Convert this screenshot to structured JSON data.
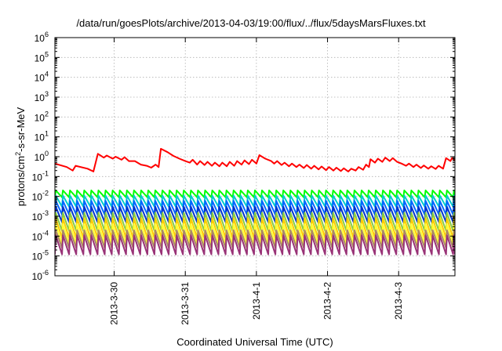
{
  "chart_data": {
    "type": "line",
    "title": "/data/run/goesPlots/archive/2013-04-03/19:00/flux/../flux/5daysMarsFluxes.txt",
    "xlabel": "Coordinated Universal Time (UTC)",
    "ylabel_main": "protons/cm",
    "ylabel_sup": "2",
    "ylabel_rest": "-s-sr-MeV",
    "yscale": "log",
    "ylim_exp": [
      -6,
      6
    ],
    "ytick_base": "10",
    "ytick_exponents": [
      "-6",
      "-5",
      "-4",
      "-3",
      "-2",
      "-1",
      "0",
      "1",
      "2",
      "3",
      "4",
      "5",
      "6"
    ],
    "xlim": [
      "2013-03-29T04:00",
      "2013-04-03T19:00"
    ],
    "x_ticks": [
      {
        "date": "2013-03-30T00:00",
        "label": "2013-3-30"
      },
      {
        "date": "2013-03-31T00:00",
        "label": "2013-3-31"
      },
      {
        "date": "2013-04-01T00:00",
        "label": "2013-4-1"
      },
      {
        "date": "2013-04-02T00:00",
        "label": "2013-4-2"
      },
      {
        "date": "2013-04-03T00:00",
        "label": "2013-4-3"
      }
    ],
    "grid": true,
    "series": [
      {
        "color": "#ff0000",
        "points": [
          [
            "2013-03-29T04:00",
            0.45
          ],
          [
            "2013-03-29T08:00",
            0.3
          ],
          [
            "2013-03-29T10:00",
            0.2
          ],
          [
            "2013-03-29T11:00",
            0.35
          ],
          [
            "2013-03-29T15:00",
            0.25
          ],
          [
            "2013-03-29T17:00",
            0.18
          ],
          [
            "2013-03-29T18:30",
            1.4
          ],
          [
            "2013-03-29T20:30",
            0.9
          ],
          [
            "2013-03-29T21:30",
            1.15
          ],
          [
            "2013-03-29T23:30",
            0.8
          ],
          [
            "2013-03-30T00:30",
            1.0
          ],
          [
            "2013-03-30T02:30",
            0.7
          ],
          [
            "2013-03-30T03:30",
            0.95
          ],
          [
            "2013-03-30T05:00",
            0.6
          ],
          [
            "2013-03-30T07:00",
            0.6
          ],
          [
            "2013-03-30T09:00",
            0.4
          ],
          [
            "2013-03-30T11:00",
            0.35
          ],
          [
            "2013-03-30T12:30",
            0.28
          ],
          [
            "2013-03-30T14:00",
            0.4
          ],
          [
            "2013-03-30T15:00",
            0.3
          ],
          [
            "2013-03-30T15:45",
            2.5
          ],
          [
            "2013-03-30T18:00",
            1.7
          ],
          [
            "2013-03-30T20:00",
            1.1
          ],
          [
            "2013-03-30T22:00",
            0.8
          ],
          [
            "2013-03-31T00:00",
            0.6
          ],
          [
            "2013-03-31T01:30",
            0.5
          ],
          [
            "2013-03-31T02:30",
            0.7
          ],
          [
            "2013-03-31T04:00",
            0.4
          ],
          [
            "2013-03-31T05:00",
            0.6
          ],
          [
            "2013-03-31T06:30",
            0.38
          ],
          [
            "2013-03-31T07:30",
            0.55
          ],
          [
            "2013-03-31T09:00",
            0.35
          ],
          [
            "2013-03-31T10:00",
            0.5
          ],
          [
            "2013-03-31T11:30",
            0.33
          ],
          [
            "2013-03-31T12:30",
            0.5
          ],
          [
            "2013-03-31T14:00",
            0.33
          ],
          [
            "2013-03-31T15:00",
            0.55
          ],
          [
            "2013-03-31T16:30",
            0.35
          ],
          [
            "2013-03-31T17:30",
            0.6
          ],
          [
            "2013-03-31T19:00",
            0.4
          ],
          [
            "2013-03-31T20:00",
            0.65
          ],
          [
            "2013-03-31T21:30",
            0.42
          ],
          [
            "2013-03-31T22:30",
            0.7
          ],
          [
            "2013-04-01T00:00",
            0.45
          ],
          [
            "2013-04-01T01:00",
            1.2
          ],
          [
            "2013-04-01T03:00",
            0.8
          ],
          [
            "2013-04-01T05:00",
            0.6
          ],
          [
            "2013-04-01T06:00",
            0.45
          ],
          [
            "2013-04-01T07:00",
            0.6
          ],
          [
            "2013-04-01T08:30",
            0.38
          ],
          [
            "2013-04-01T09:30",
            0.5
          ],
          [
            "2013-04-01T11:00",
            0.33
          ],
          [
            "2013-04-01T12:00",
            0.45
          ],
          [
            "2013-04-01T13:30",
            0.3
          ],
          [
            "2013-04-01T14:30",
            0.4
          ],
          [
            "2013-04-01T16:00",
            0.27
          ],
          [
            "2013-04-01T17:00",
            0.38
          ],
          [
            "2013-04-01T18:30",
            0.25
          ],
          [
            "2013-04-01T19:30",
            0.35
          ],
          [
            "2013-04-01T21:00",
            0.23
          ],
          [
            "2013-04-01T22:00",
            0.32
          ],
          [
            "2013-04-01T23:30",
            0.21
          ],
          [
            "2013-04-02T00:30",
            0.3
          ],
          [
            "2013-04-02T02:00",
            0.2
          ],
          [
            "2013-04-02T03:00",
            0.28
          ],
          [
            "2013-04-02T04:30",
            0.19
          ],
          [
            "2013-04-02T05:30",
            0.26
          ],
          [
            "2013-04-02T07:00",
            0.18
          ],
          [
            "2013-04-02T08:00",
            0.25
          ],
          [
            "2013-04-02T09:30",
            0.2
          ],
          [
            "2013-04-02T10:30",
            0.3
          ],
          [
            "2013-04-02T12:00",
            0.22
          ],
          [
            "2013-04-02T13:00",
            0.4
          ],
          [
            "2013-04-02T14:00",
            0.3
          ],
          [
            "2013-04-02T14:30",
            0.75
          ],
          [
            "2013-04-02T16:00",
            0.5
          ],
          [
            "2013-04-02T17:00",
            0.8
          ],
          [
            "2013-04-02T18:30",
            0.55
          ],
          [
            "2013-04-02T19:30",
            0.9
          ],
          [
            "2013-04-02T21:00",
            0.6
          ],
          [
            "2013-04-02T22:00",
            0.85
          ],
          [
            "2013-04-02T23:30",
            0.55
          ],
          [
            "2013-04-03T01:00",
            0.45
          ],
          [
            "2013-04-03T02:30",
            0.35
          ],
          [
            "2013-04-03T03:30",
            0.45
          ],
          [
            "2013-04-03T05:00",
            0.3
          ],
          [
            "2013-04-03T06:00",
            0.4
          ],
          [
            "2013-04-03T07:30",
            0.27
          ],
          [
            "2013-04-03T08:30",
            0.36
          ],
          [
            "2013-04-03T10:00",
            0.25
          ],
          [
            "2013-04-03T11:00",
            0.33
          ],
          [
            "2013-04-03T12:30",
            0.24
          ],
          [
            "2013-04-03T13:30",
            0.35
          ],
          [
            "2013-04-03T15:00",
            0.25
          ],
          [
            "2013-04-03T16:00",
            0.85
          ],
          [
            "2013-04-03T17:30",
            0.6
          ],
          [
            "2013-04-03T18:00",
            0.85
          ],
          [
            "2013-04-03T19:00",
            0.65
          ]
        ]
      },
      {
        "color": "#00ff00",
        "sawtooth": {
          "peak": 0.02,
          "trough": 0.009,
          "period_hours": 2.4,
          "start": "2013-03-29T04:00",
          "end": "2013-04-03T19:00"
        }
      },
      {
        "color": "#00cccc",
        "sawtooth": {
          "peak": 0.011,
          "trough": 0.003,
          "period_hours": 2.4,
          "start": "2013-03-29T04:00",
          "end": "2013-04-03T19:00"
        }
      },
      {
        "color": "#0066ff",
        "sawtooth": {
          "peak": 0.006,
          "trough": 0.0012,
          "period_hours": 2.4,
          "start": "2013-03-29T04:00",
          "end": "2013-04-03T19:00"
        }
      },
      {
        "color": "#0033cc",
        "sawtooth": {
          "peak": 0.003,
          "trough": 0.0005,
          "period_hours": 2.4,
          "start": "2013-03-29T04:00",
          "end": "2013-04-03T19:00"
        }
      },
      {
        "color": "#88cc44",
        "sawtooth": {
          "peak": 0.0015,
          "trough": 0.00018,
          "period_hours": 2.4,
          "start": "2013-03-29T04:00",
          "end": "2013-04-03T19:00"
        }
      },
      {
        "color": "#ffcc00",
        "sawtooth": {
          "peak": 0.0008,
          "trough": 8e-05,
          "period_hours": 2.4,
          "start": "2013-03-29T04:00",
          "end": "2013-04-03T19:00"
        }
      },
      {
        "color": "#ffff33",
        "sawtooth": {
          "peak": 0.0004,
          "trough": 4e-05,
          "period_hours": 2.4,
          "start": "2013-03-29T04:00",
          "end": "2013-04-03T19:00"
        }
      },
      {
        "color": "#aa8866",
        "sawtooth": {
          "peak": 0.0002,
          "trough": 2.5e-05,
          "period_hours": 2.4,
          "start": "2013-03-29T04:00",
          "end": "2013-04-03T19:00"
        }
      },
      {
        "color": "#993377",
        "sawtooth": {
          "peak": 0.00011,
          "trough": 1.2e-05,
          "period_hours": 2.4,
          "start": "2013-03-29T04:00",
          "end": "2013-04-03T19:00"
        }
      }
    ]
  }
}
